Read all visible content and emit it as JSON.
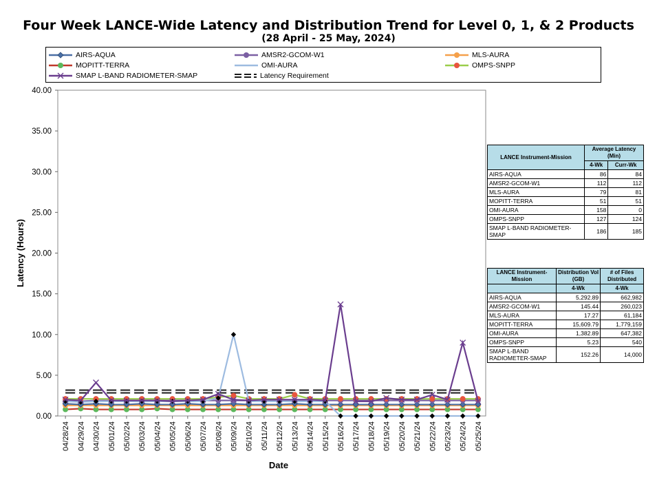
{
  "title": "Four Week LANCE-Wide Latency and Distribution Trend for Level 0, 1, & 2 Products",
  "subtitle": "(28  April    - 25  May,  2024)",
  "chart_data": {
    "type": "line",
    "xlabel": "Date",
    "ylabel": "Latency (Hours)",
    "ylim": [
      0,
      40
    ],
    "yticks": [
      "0.00",
      "5.00",
      "10.00",
      "15.00",
      "20.00",
      "25.00",
      "30.00",
      "35.00",
      "40.00"
    ],
    "legend_position": "top",
    "categories": [
      "04/28/24",
      "04/29/24",
      "04/30/24",
      "05/01/24",
      "05/02/24",
      "05/03/24",
      "05/04/24",
      "05/05/24",
      "05/06/24",
      "05/07/24",
      "05/08/24",
      "05/09/24",
      "05/10/24",
      "05/11/24",
      "05/12/24",
      "05/13/24",
      "05/14/24",
      "05/15/24",
      "05/16/24",
      "05/17/24",
      "05/18/24",
      "05/19/24",
      "05/20/24",
      "05/21/24",
      "05/22/24",
      "05/23/24",
      "05/24/24",
      "05/25/24"
    ],
    "series": [
      {
        "name": "AIRS-AQUA",
        "color": "#4a6fa5",
        "marker": "diamond",
        "values": [
          1.5,
          1.4,
          1.5,
          1.4,
          1.4,
          1.5,
          1.4,
          1.4,
          1.5,
          1.4,
          1.4,
          1.5,
          1.4,
          1.4,
          1.4,
          1.5,
          1.4,
          1.4,
          1.4,
          1.4,
          1.4,
          1.4,
          1.4,
          1.4,
          1.4,
          1.4,
          1.4,
          1.4
        ]
      },
      {
        "name": "AMSR2-GCOM-W1",
        "color": "#7b5fa3",
        "marker": "circle",
        "values": [
          1.9,
          1.8,
          1.9,
          1.9,
          1.9,
          1.9,
          1.9,
          1.9,
          1.9,
          1.9,
          1.9,
          1.9,
          1.9,
          1.9,
          1.9,
          1.9,
          1.9,
          1.9,
          1.9,
          1.9,
          1.9,
          1.9,
          1.9,
          1.9,
          1.9,
          1.9,
          1.9,
          1.9
        ]
      },
      {
        "name": "MLS-AURA",
        "color": "#f5a04a",
        "marker": "circle",
        "values": [
          1.3,
          1.3,
          1.3,
          1.3,
          1.3,
          1.3,
          1.3,
          1.3,
          1.3,
          1.3,
          1.3,
          1.3,
          1.3,
          1.3,
          1.3,
          1.3,
          1.3,
          1.3,
          1.3,
          1.3,
          1.3,
          1.3,
          1.3,
          1.3,
          1.3,
          1.3,
          1.3,
          1.3
        ]
      },
      {
        "name": "MOPITT-TERRA",
        "color": "#c0392b",
        "marker": "none",
        "values": [
          0.8,
          0.9,
          0.8,
          0.8,
          0.8,
          0.8,
          0.9,
          0.8,
          0.8,
          0.8,
          0.8,
          0.8,
          0.8,
          0.8,
          0.8,
          0.8,
          0.8,
          0.8,
          0.8,
          0.8,
          0.8,
          0.8,
          0.8,
          0.8,
          0.8,
          0.8,
          0.8,
          0.8
        ]
      },
      {
        "name": "OMI-AURA",
        "color": "#9dbbe0",
        "marker": "diamond-small",
        "values": [
          1.8,
          1.7,
          1.8,
          1.8,
          1.8,
          1.8,
          1.8,
          1.8,
          1.8,
          1.8,
          2.2,
          10.0,
          1.8,
          1.8,
          1.8,
          1.8,
          1.8,
          1.8,
          0,
          0,
          0,
          0,
          0,
          0,
          0,
          0,
          0,
          0
        ]
      },
      {
        "name": "OMPS-SNPP",
        "color": "#9acd4a",
        "marker": "circle-red",
        "values": [
          2.1,
          2.1,
          2.1,
          2.1,
          2.1,
          2.1,
          2.1,
          2.1,
          2.1,
          2.1,
          2.3,
          2.5,
          2.1,
          2.1,
          2.1,
          2.6,
          2.1,
          2.1,
          2.1,
          2.1,
          2.1,
          2.1,
          2.1,
          2.1,
          2.1,
          2.1,
          2.1,
          2.1
        ]
      },
      {
        "name": "SMAP L-BAND RADIOMETER-SMAP",
        "color": "#6a3d8e",
        "marker": "x",
        "values": [
          2.0,
          1.9,
          4.1,
          1.9,
          1.9,
          1.9,
          1.9,
          1.8,
          1.9,
          2.0,
          2.7,
          2.0,
          1.9,
          2.0,
          2.0,
          2.0,
          2.0,
          1.9,
          13.7,
          1.8,
          1.8,
          2.2,
          2.0,
          2.0,
          2.6,
          2.0,
          9.0,
          1.8
        ]
      },
      {
        "name": "Latency Requirement",
        "color": "#1a1a1a",
        "marker": "none",
        "dashed": true,
        "values": [
          3,
          3,
          3,
          3,
          3,
          3,
          3,
          3,
          3,
          3,
          3,
          3,
          3,
          3,
          3,
          3,
          3,
          3,
          3,
          3,
          3,
          3,
          3,
          3,
          3,
          3,
          3,
          3
        ]
      }
    ]
  },
  "latency_table": {
    "h_col1": "LANCE Instrument-Mission",
    "h_group": "Average Latency (Min)",
    "h_sub1": "4-Wk",
    "h_sub2": "Curr-Wk",
    "rows": [
      {
        "name": "AIRS-AQUA",
        "a": "86",
        "b": "84"
      },
      {
        "name": "AMSR2-GCOM-W1",
        "a": "112",
        "b": "112"
      },
      {
        "name": "MLS-AURA",
        "a": "79",
        "b": "81"
      },
      {
        "name": "MOPITT-TERRA",
        "a": "51",
        "b": "51"
      },
      {
        "name": "OMI-AURA",
        "a": "158",
        "b": "0"
      },
      {
        "name": "OMPS-SNPP",
        "a": "127",
        "b": "124"
      },
      {
        "name": "SMAP L-BAND RADIOMETER-SMAP",
        "a": "186",
        "b": "185"
      }
    ]
  },
  "distribution_table": {
    "h_col1": "LANCE Instrument-Mission",
    "h_col2": "Distribution Vol (GB)",
    "h_col3": "# of Files Distributed",
    "h_sub1": "4-Wk",
    "h_sub2": "4-Wk",
    "rows": [
      {
        "name": "AIRS-AQUA",
        "a": "5,292.89",
        "b": "662,982"
      },
      {
        "name": "AMSR2-GCOM-W1",
        "a": "145.44",
        "b": "260,023"
      },
      {
        "name": "MLS-AURA",
        "a": "17.27",
        "b": "61,184"
      },
      {
        "name": "MOPITT-TERRA",
        "a": "15,609.79",
        "b": "1,779,159"
      },
      {
        "name": "OMI-AURA",
        "a": "1,382.89",
        "b": "647,382"
      },
      {
        "name": "OMPS-SNPP",
        "a": "5.23",
        "b": "540"
      },
      {
        "name": "SMAP L-BAND RADIOMETER-SMAP",
        "a": "152.26",
        "b": "14,000"
      }
    ]
  }
}
